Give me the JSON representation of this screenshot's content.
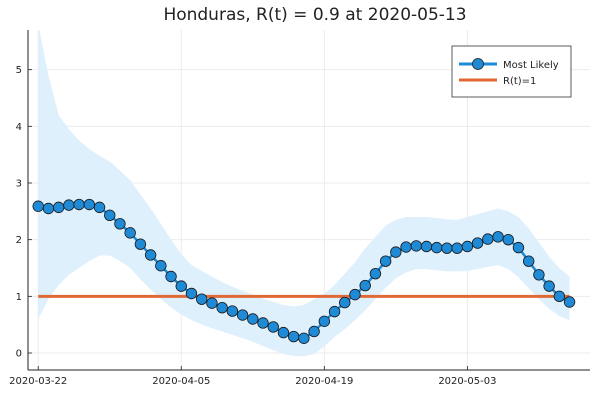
{
  "chart_data": {
    "type": "line",
    "title": "Honduras, R(t) = 0.9 at 2020-05-13",
    "xlabel": "",
    "ylabel": "",
    "x_start": "2020-03-22",
    "x_end": "2020-05-13",
    "xlim": [
      "2020-03-21",
      "2020-05-15"
    ],
    "ylim": [
      -0.3,
      5.7
    ],
    "x_ticks": [
      "2020-03-22",
      "2020-04-05",
      "2020-04-19",
      "2020-05-03"
    ],
    "y_ticks": [
      0,
      1,
      2,
      3,
      4,
      5
    ],
    "grid": true,
    "legend_position": "top-right",
    "series": [
      {
        "name": "Most Likely",
        "color": "#1f8ad6",
        "marker": "circle",
        "values": [
          2.59,
          2.55,
          2.57,
          2.61,
          2.62,
          2.62,
          2.57,
          2.43,
          2.28,
          2.12,
          1.92,
          1.73,
          1.54,
          1.35,
          1.18,
          1.05,
          0.95,
          0.88,
          0.8,
          0.74,
          0.67,
          0.6,
          0.53,
          0.46,
          0.36,
          0.29,
          0.26,
          0.38,
          0.56,
          0.73,
          0.89,
          1.03,
          1.19,
          1.4,
          1.62,
          1.78,
          1.87,
          1.89,
          1.88,
          1.86,
          1.85,
          1.85,
          1.88,
          1.94,
          2.01,
          2.05,
          2.0,
          1.86,
          1.62,
          1.38,
          1.18,
          1.0,
          0.9
        ]
      },
      {
        "name": "R(t)=1",
        "color": "#e06a35",
        "values": [
          1,
          1
        ]
      }
    ],
    "band": {
      "color": "#dff0fd",
      "upper": [
        5.8,
        4.9,
        4.2,
        3.95,
        3.75,
        3.6,
        3.48,
        3.38,
        3.22,
        3.05,
        2.8,
        2.55,
        2.28,
        2.0,
        1.75,
        1.55,
        1.45,
        1.35,
        1.25,
        1.17,
        1.1,
        1.03,
        0.96,
        0.9,
        0.85,
        0.82,
        0.85,
        0.95,
        1.05,
        1.2,
        1.4,
        1.6,
        1.85,
        2.05,
        2.25,
        2.35,
        2.4,
        2.4,
        2.4,
        2.38,
        2.36,
        2.35,
        2.4,
        2.45,
        2.5,
        2.55,
        2.5,
        2.4,
        2.2,
        1.95,
        1.7,
        1.5,
        1.35
      ],
      "lower": [
        0.6,
        0.95,
        1.2,
        1.38,
        1.5,
        1.62,
        1.72,
        1.72,
        1.62,
        1.5,
        1.3,
        1.12,
        0.95,
        0.8,
        0.68,
        0.58,
        0.5,
        0.44,
        0.38,
        0.32,
        0.26,
        0.2,
        0.12,
        0.05,
        -0.02,
        -0.05,
        -0.06,
        -0.02,
        0.12,
        0.28,
        0.42,
        0.58,
        0.75,
        0.95,
        1.15,
        1.32,
        1.42,
        1.48,
        1.48,
        1.46,
        1.44,
        1.44,
        1.45,
        1.48,
        1.52,
        1.55,
        1.48,
        1.34,
        1.14,
        0.95,
        0.78,
        0.65,
        0.58
      ]
    }
  }
}
